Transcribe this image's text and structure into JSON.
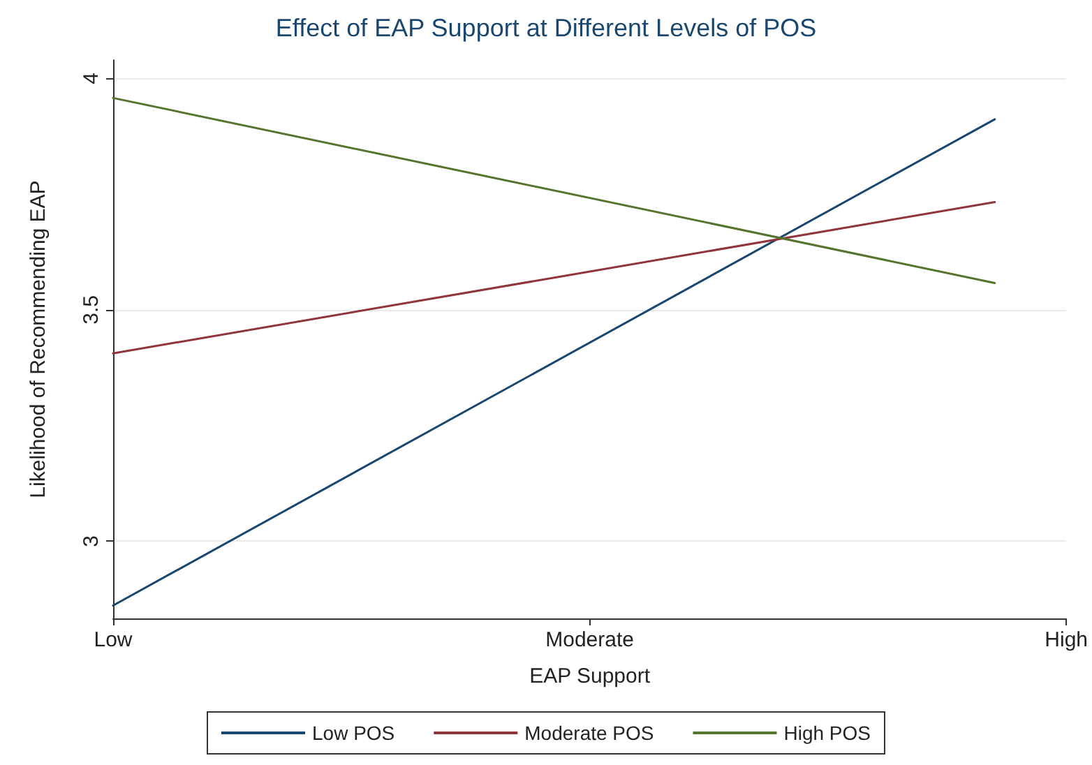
{
  "chart_data": {
    "type": "line",
    "title": "Effect of EAP Support at Different Levels of POS",
    "xlabel": "EAP Support",
    "ylabel": "Likelihood of Recommending EAP",
    "categories": [
      "Low",
      null,
      null,
      null,
      null,
      null,
      null,
      null,
      null,
      null,
      null,
      null,
      null,
      null,
      null,
      null,
      null,
      null,
      null,
      null,
      "Moderate",
      null,
      null,
      null,
      null,
      null,
      null,
      null,
      null,
      null,
      null,
      null,
      null,
      null,
      null,
      null,
      null,
      null,
      null,
      null,
      "High"
    ],
    "ylim": [
      2.833,
      4.04
    ],
    "yticks": [
      3,
      3.5,
      4
    ],
    "series": [
      {
        "name": "Low POS",
        "color": "#1a476f",
        "values": [
          2.861,
          null,
          null,
          null,
          null,
          null,
          null,
          null,
          null,
          null,
          null,
          null,
          null,
          null,
          null,
          null,
          null,
          null,
          null,
          null,
          null,
          null,
          null,
          null,
          null,
          null,
          null,
          null,
          null,
          null,
          null,
          null,
          null,
          null,
          null,
          null,
          null,
          3.912,
          null,
          null,
          null
        ]
      },
      {
        "name": "Moderate POS",
        "color": "#90353b",
        "values": [
          3.406,
          null,
          null,
          null,
          null,
          null,
          null,
          null,
          null,
          null,
          null,
          null,
          null,
          null,
          null,
          null,
          null,
          null,
          null,
          null,
          null,
          null,
          null,
          null,
          null,
          null,
          null,
          null,
          null,
          null,
          null,
          null,
          null,
          null,
          null,
          null,
          null,
          3.733,
          null,
          null,
          null
        ]
      },
      {
        "name": "High POS",
        "color": "#55752f",
        "values": [
          3.958,
          null,
          null,
          null,
          null,
          null,
          null,
          null,
          null,
          null,
          null,
          null,
          null,
          null,
          null,
          null,
          null,
          null,
          null,
          null,
          null,
          null,
          null,
          null,
          null,
          null,
          null,
          null,
          null,
          null,
          null,
          null,
          null,
          null,
          null,
          null,
          null,
          3.558,
          null,
          null,
          null
        ]
      }
    ],
    "grid": "y",
    "legend": "bottom",
    "marker": "none",
    "line_style": "solid"
  }
}
